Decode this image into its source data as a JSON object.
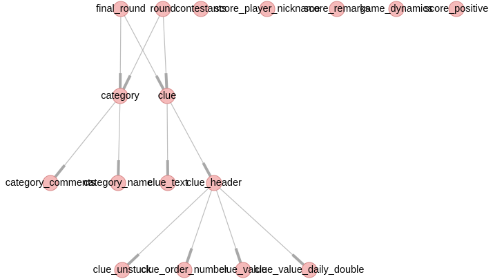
{
  "graph": {
    "node_color": "#f4b6b6",
    "edge_color": "#bdbdbd",
    "nodes": [
      {
        "id": "final_round",
        "label": "final_round"
      },
      {
        "id": "round",
        "label": "round"
      },
      {
        "id": "contestants",
        "label": "contestants"
      },
      {
        "id": "score_player_nickname",
        "label": "score_player_nickname"
      },
      {
        "id": "score_remarks",
        "label": "score_remarks"
      },
      {
        "id": "game_dynamics",
        "label": "game_dynamics"
      },
      {
        "id": "score_positive",
        "label": "score_positive"
      },
      {
        "id": "category",
        "label": "category"
      },
      {
        "id": "clue",
        "label": "clue"
      },
      {
        "id": "category_comments",
        "label": "category_comments"
      },
      {
        "id": "category_name",
        "label": "category_name"
      },
      {
        "id": "clue_text",
        "label": "clue_text"
      },
      {
        "id": "clue_header",
        "label": "clue_header"
      },
      {
        "id": "clue_unstuck",
        "label": "clue_unstuck"
      },
      {
        "id": "clue_order_number",
        "label": "clue_order_number"
      },
      {
        "id": "clue_value",
        "label": "clue_value"
      },
      {
        "id": "clue_value_daily_double",
        "label": "clue_value_daily_double"
      }
    ],
    "edges": [
      {
        "source": "final_round",
        "target": "category"
      },
      {
        "source": "final_round",
        "target": "clue"
      },
      {
        "source": "round",
        "target": "category"
      },
      {
        "source": "round",
        "target": "clue"
      },
      {
        "source": "category",
        "target": "category_comments"
      },
      {
        "source": "category",
        "target": "category_name"
      },
      {
        "source": "clue",
        "target": "clue_text"
      },
      {
        "source": "clue",
        "target": "clue_header"
      },
      {
        "source": "clue_header",
        "target": "clue_unstuck"
      },
      {
        "source": "clue_header",
        "target": "clue_order_number"
      },
      {
        "source": "clue_header",
        "target": "clue_value"
      },
      {
        "source": "clue_header",
        "target": "clue_value_daily_double"
      }
    ]
  }
}
